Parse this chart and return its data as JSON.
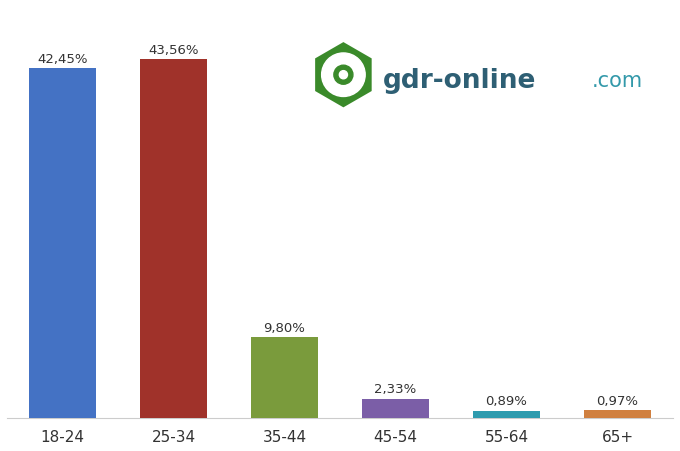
{
  "categories": [
    "18-24",
    "25-34",
    "35-44",
    "45-54",
    "55-64",
    "65+"
  ],
  "values": [
    42.45,
    43.56,
    9.8,
    2.33,
    0.89,
    0.97
  ],
  "labels": [
    "42,45%",
    "43,56%",
    "9,80%",
    "2,33%",
    "0,89%",
    "0,97%"
  ],
  "bar_colors": [
    "#4472C4",
    "#A0322A",
    "#7A9B3C",
    "#7B5EA7",
    "#2E9BAE",
    "#D08040"
  ],
  "background_color": "#FFFFFF",
  "grid_color": "#CCCCCC",
  "ylim": [
    0,
    50
  ],
  "figsize": [
    6.8,
    4.52
  ],
  "dpi": 100,
  "label_color": "#333333",
  "tick_color": "#333333",
  "logo_text": "gdr-online",
  "logo_com": ".com",
  "logo_text_color": "#2E5F74",
  "logo_com_color": "#3399AA",
  "logo_hex_color": "#3A8A2A",
  "bar_width": 0.6
}
